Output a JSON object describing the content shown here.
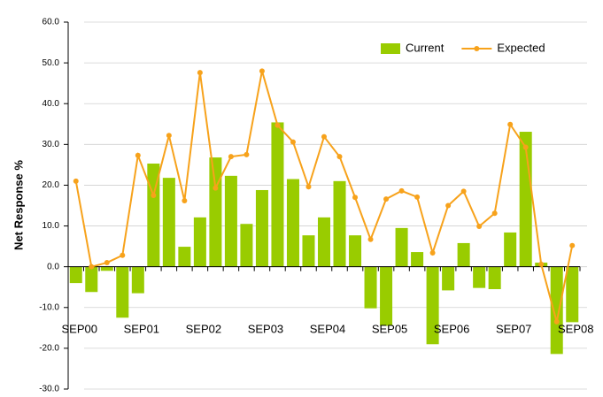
{
  "chart_data": {
    "type": "bar",
    "y_label": "Net Response %",
    "categories": [
      "SEP00",
      null,
      null,
      null,
      "SEP01",
      null,
      null,
      null,
      "SEP02",
      null,
      null,
      null,
      "SEP03",
      null,
      null,
      null,
      "SEP04",
      null,
      null,
      null,
      "SEP05",
      null,
      null,
      null,
      "SEP06",
      null,
      null,
      null,
      "SEP07",
      null,
      null,
      null,
      "SEP08"
    ],
    "series": [
      {
        "name": "Current",
        "type": "bar",
        "color": "#99cc00",
        "values": [
          -4.0,
          -6.2,
          -1.0,
          -12.5,
          -6.5,
          25.3,
          21.8,
          4.9,
          12.1,
          26.8,
          22.3,
          10.5,
          18.8,
          35.4,
          21.5,
          7.7,
          12.1,
          21.0,
          7.7,
          -10.2,
          -14.5,
          9.5,
          3.6,
          -19.0,
          -5.8,
          5.8,
          -5.2,
          -5.5,
          8.4,
          33.1,
          1.0,
          -21.4,
          -13.6
        ]
      },
      {
        "name": "Expected",
        "type": "line",
        "color": "#f7a21b",
        "values": [
          21.0,
          0.0,
          1.0,
          2.8,
          27.3,
          17.5,
          32.2,
          16.2,
          47.6,
          19.3,
          27.0,
          27.5,
          48.0,
          34.7,
          30.6,
          19.6,
          31.9,
          27.0,
          17.0,
          6.7,
          16.6,
          18.6,
          17.1,
          3.4,
          15.0,
          18.5,
          9.9,
          13.1,
          34.9,
          29.3,
          0.6,
          -13.5,
          5.2
        ]
      }
    ],
    "ylim": [
      -30,
      60
    ],
    "yticks": [
      {
        "value": -30,
        "label": "-30.0"
      },
      {
        "value": -20,
        "label": "-20.0"
      },
      {
        "value": -10,
        "label": "-10.0"
      },
      {
        "value": 0,
        "label": "0.0"
      },
      {
        "value": 10,
        "label": "10.0"
      },
      {
        "value": 20,
        "label": "20.0"
      },
      {
        "value": 30,
        "label": "30.0"
      },
      {
        "value": 40,
        "label": "40.0"
      },
      {
        "value": 50,
        "label": "50.0"
      },
      {
        "value": 60,
        "label": "60.0"
      }
    ],
    "grid": true,
    "legend": "upper right"
  }
}
